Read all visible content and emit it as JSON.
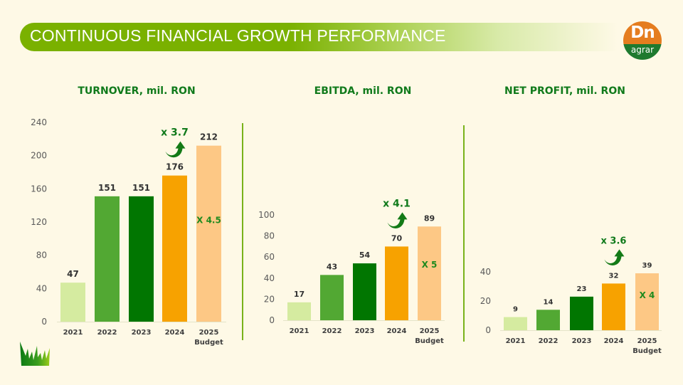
{
  "header": {
    "title": "CONTINUOUS FINANCIAL GROWTH PERFORMANCE"
  },
  "logo": {
    "top_text": "Dn",
    "bottom_text": "agrar"
  },
  "colors": {
    "background": "#fef9e6",
    "header_green": "#7ab100",
    "title_green": "#107a1b",
    "divider": "#79b21a",
    "bar_2021": "#d5eba0",
    "bar_2022": "#52a833",
    "bar_2023": "#017601",
    "bar_2024": "#f7a200",
    "bar_2025": "#fdc885"
  },
  "chart_data": [
    {
      "type": "bar",
      "title": "TURNOVER, mil. RON",
      "categories": [
        "2021",
        "2022",
        "2023",
        "2024",
        "2025"
      ],
      "category_sublabels": [
        "",
        "",
        "",
        "",
        "Budget"
      ],
      "values": [
        47,
        151,
        151,
        176,
        212
      ],
      "yticks": [
        0,
        40,
        80,
        120,
        160,
        200,
        240
      ],
      "ylim": [
        0,
        240
      ],
      "xlabel": "",
      "ylabel": "",
      "grid": false,
      "annotations": {
        "growth_2024": "x 3.7",
        "inside_2025": "X 4.5"
      }
    },
    {
      "type": "bar",
      "title": "EBITDA, mil. RON",
      "categories": [
        "2021",
        "2022",
        "2023",
        "2024",
        "2025"
      ],
      "category_sublabels": [
        "",
        "",
        "",
        "",
        "Budget"
      ],
      "values": [
        17,
        43,
        54,
        70,
        89
      ],
      "yticks": [
        0,
        20,
        40,
        60,
        80,
        100
      ],
      "ylim": [
        0,
        100
      ],
      "xlabel": "",
      "ylabel": "",
      "grid": false,
      "annotations": {
        "growth_2024": "x 4.1",
        "inside_2025": "X 5"
      }
    },
    {
      "type": "bar",
      "title": "NET PROFIT, mil. RON",
      "categories": [
        "2021",
        "2022",
        "2023",
        "2024",
        "2025"
      ],
      "category_sublabels": [
        "",
        "",
        "",
        "",
        "Budget"
      ],
      "values": [
        9,
        14,
        23,
        32,
        39
      ],
      "yticks": [
        0,
        20,
        40
      ],
      "ylim": [
        0,
        40
      ],
      "xlabel": "",
      "ylabel": "",
      "grid": false,
      "annotations": {
        "growth_2024": "x 3.6",
        "inside_2025": "X 4"
      }
    }
  ]
}
